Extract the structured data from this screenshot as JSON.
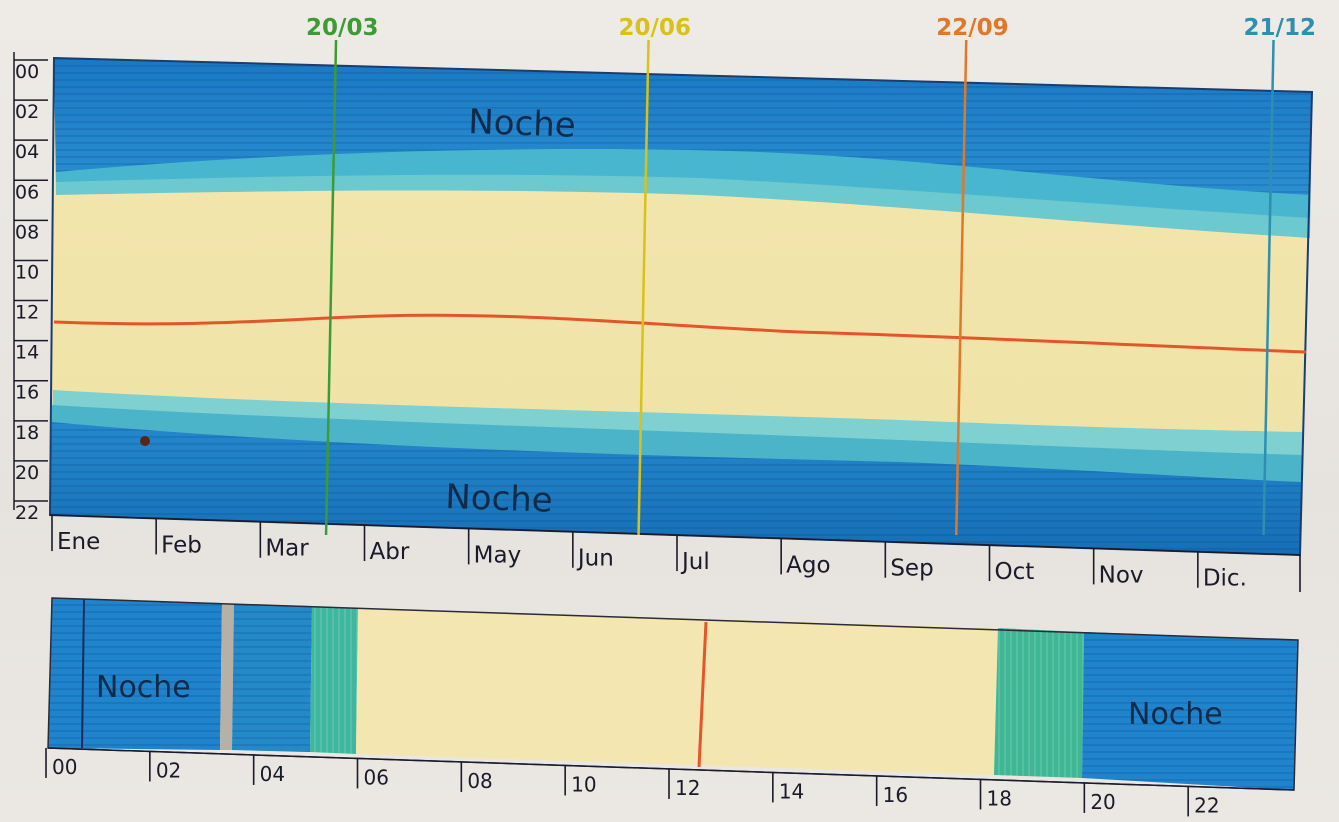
{
  "top_chart": {
    "y_ticks": [
      "00",
      "02",
      "04",
      "06",
      "08",
      "10",
      "12",
      "14",
      "16",
      "18",
      "20",
      "22"
    ],
    "months": [
      "Ene",
      "Feb",
      "Mar",
      "Abr",
      "May",
      "Jun",
      "Jul",
      "Ago",
      "Sep",
      "Oct",
      "Nov",
      "Dic."
    ],
    "markers": [
      {
        "label": "20/03",
        "color": "#3d9b36",
        "month_pos": 2.65
      },
      {
        "label": "20/06",
        "color": "#d8c21a",
        "month_pos": 5.65
      },
      {
        "label": "22/09",
        "color": "#e0782a",
        "month_pos": 8.7
      },
      {
        "label": "21/12",
        "color": "#2e8fb0",
        "month_pos": 11.65
      }
    ],
    "night_top_label": "Noche",
    "night_bottom_label": "Noche"
  },
  "bottom_chart": {
    "hour_ticks": [
      "00",
      "02",
      "04",
      "06",
      "08",
      "10",
      "12",
      "14",
      "16",
      "18",
      "20",
      "22"
    ],
    "night_left_label": "Noche",
    "night_right_label": "Noche"
  },
  "colors": {
    "night": "#1f7fc7",
    "night_dark": "#1565a8",
    "twilight": "#5fc3cf",
    "twilight_green": "#3fae9a",
    "day": "#f4e7ad",
    "noon_line": "#e4552a"
  }
}
